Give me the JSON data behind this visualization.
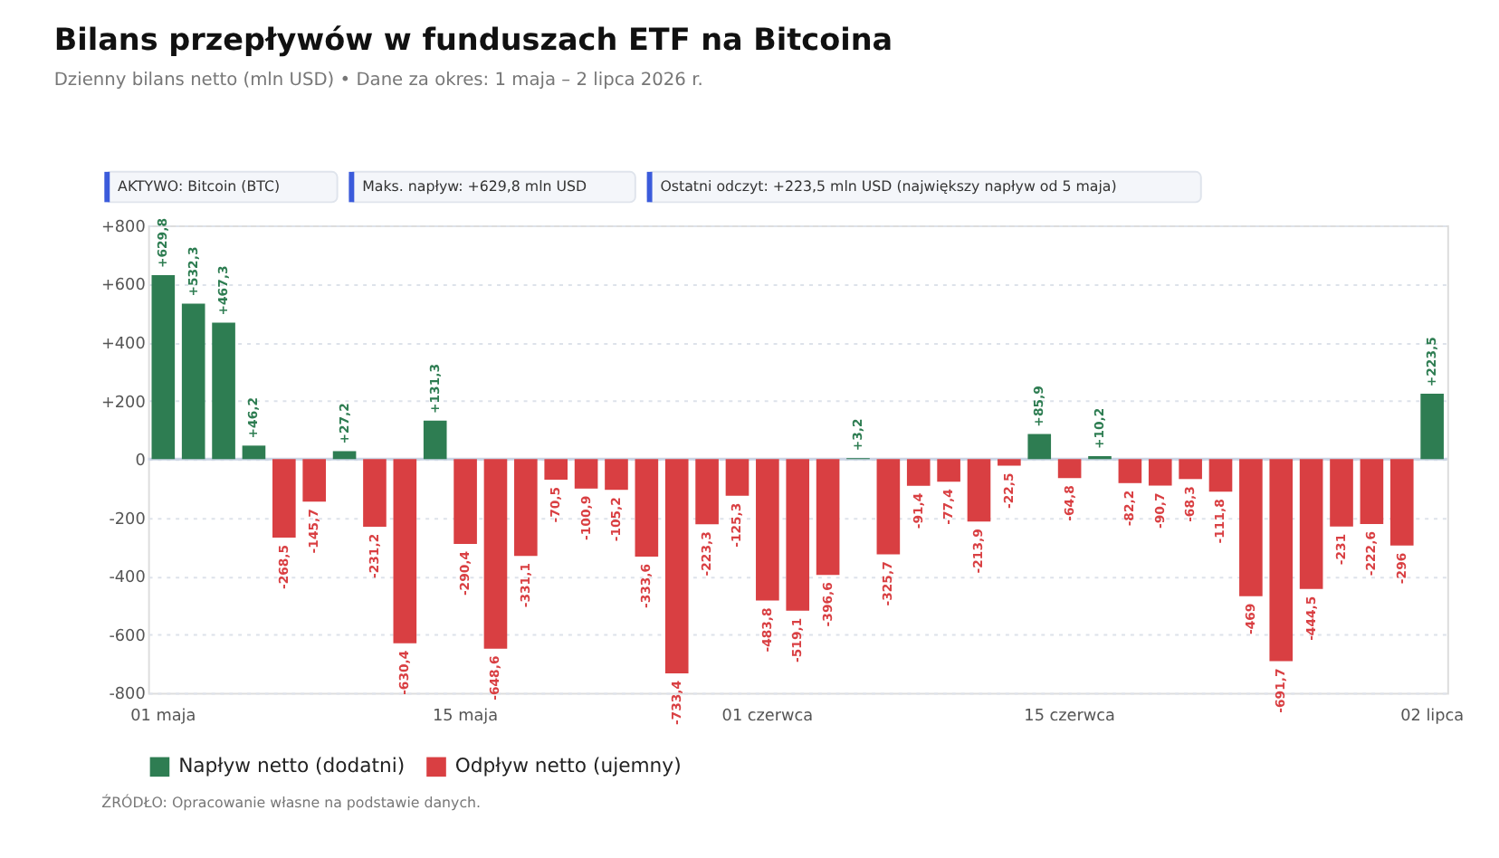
{
  "chart_data": {
    "type": "bar",
    "title": "Bilans przepływów w funduszach ETF na Bitcoina",
    "subtitle": "Dzienny bilans netto (mln USD) • Dane za okres: 1 maja – 2 lipca 2026 r.",
    "annotations": [
      "AKTYWO: Bitcoin (BTC)",
      "Maks. napływ: +629,8 mln USD",
      "Ostatni odczyt: +223,5 mln USD (największy napływ od 5 maja)",
      "ŹRÓDŁO: Opracowanie własne na podstawie danych."
    ],
    "categories": [
      "01 maja",
      null,
      null,
      null,
      null,
      null,
      null,
      null,
      null,
      null,
      "15 maja",
      null,
      null,
      null,
      null,
      null,
      null,
      null,
      null,
      null,
      "01 czerwca",
      null,
      null,
      null,
      null,
      null,
      null,
      null,
      null,
      null,
      "15 czerwca",
      null,
      null,
      null,
      null,
      null,
      null,
      null,
      null,
      null,
      null,
      null,
      "02 lipca"
    ],
    "series": [
      {
        "name": "Napływ netto (dodatni)",
        "color": "#2e7d52",
        "values": [
          629.8,
          532.3,
          467.3,
          46.2,
          null,
          null,
          27.2,
          null,
          null,
          131.3,
          null,
          null,
          null,
          null,
          null,
          null,
          null,
          null,
          null,
          null,
          null,
          null,
          null,
          3.2,
          null,
          null,
          null,
          null,
          null,
          85.9,
          null,
          10.2,
          null,
          null,
          null,
          null,
          null,
          null,
          null,
          null,
          null,
          null,
          223.5
        ],
        "value_labels": [
          "+629,8",
          "+532,3",
          "+467,3",
          "+46,2",
          null,
          null,
          "+27,2",
          null,
          null,
          "+131,3",
          null,
          null,
          null,
          null,
          null,
          null,
          null,
          null,
          null,
          null,
          null,
          null,
          null,
          "+3,2",
          null,
          null,
          null,
          null,
          null,
          "+85,9",
          null,
          "+10,2",
          null,
          null,
          null,
          null,
          null,
          null,
          null,
          null,
          null,
          null,
          "+223,5"
        ]
      },
      {
        "name": "Odpływ netto (ujemny)",
        "color": "#d93f42",
        "values": [
          null,
          null,
          null,
          null,
          -268.5,
          -145.7,
          null,
          -231.2,
          -630.4,
          null,
          -290.4,
          -648.6,
          -331.1,
          -70.5,
          -100.9,
          -105.2,
          -333.6,
          -733.4,
          -223.3,
          -125.3,
          -483.8,
          -519.1,
          -396.6,
          null,
          -325.7,
          -91.4,
          -77.4,
          -213.9,
          -22.5,
          null,
          -64.8,
          null,
          -82.2,
          -90.7,
          -68.3,
          -111.8,
          -469,
          -691.7,
          -444.5,
          -231,
          -222.6,
          -296,
          null
        ],
        "value_labels": [
          null,
          null,
          null,
          null,
          "-268,5",
          "-145,7",
          null,
          "-231,2",
          "-630,4",
          null,
          "-290,4",
          "-648,6",
          "-331,1",
          "-70,5",
          "-100,9",
          "-105,2",
          "-333,6",
          "-733,4",
          "-223,3",
          "-125,3",
          "-483,8",
          "-519,1",
          "-396,6",
          null,
          "-325,7",
          "-91,4",
          "-77,4",
          "-213,9",
          "-22,5",
          null,
          "-64,8",
          null,
          "-82,2",
          "-90,7",
          "-68,3",
          "-111,8",
          "-469",
          "-691,7",
          "-444,5",
          "-231",
          "-222,6",
          "-296",
          null
        ]
      }
    ],
    "ylim": [
      -800,
      800
    ],
    "yticks": [
      {
        "value": -800,
        "label": "-800"
      },
      {
        "value": -600,
        "label": "-600"
      },
      {
        "value": -400,
        "label": "-400"
      },
      {
        "value": -200,
        "label": "-200"
      },
      {
        "value": 0,
        "label": "0"
      },
      {
        "value": 200,
        "label": "+200"
      },
      {
        "value": 400,
        "label": "+400"
      },
      {
        "value": 600,
        "label": "+600"
      },
      {
        "value": 800,
        "label": "+800"
      }
    ],
    "ref_lines": [
      {
        "axis": "y",
        "value": 0
      }
    ],
    "grid": "y",
    "legend": "bottom"
  }
}
